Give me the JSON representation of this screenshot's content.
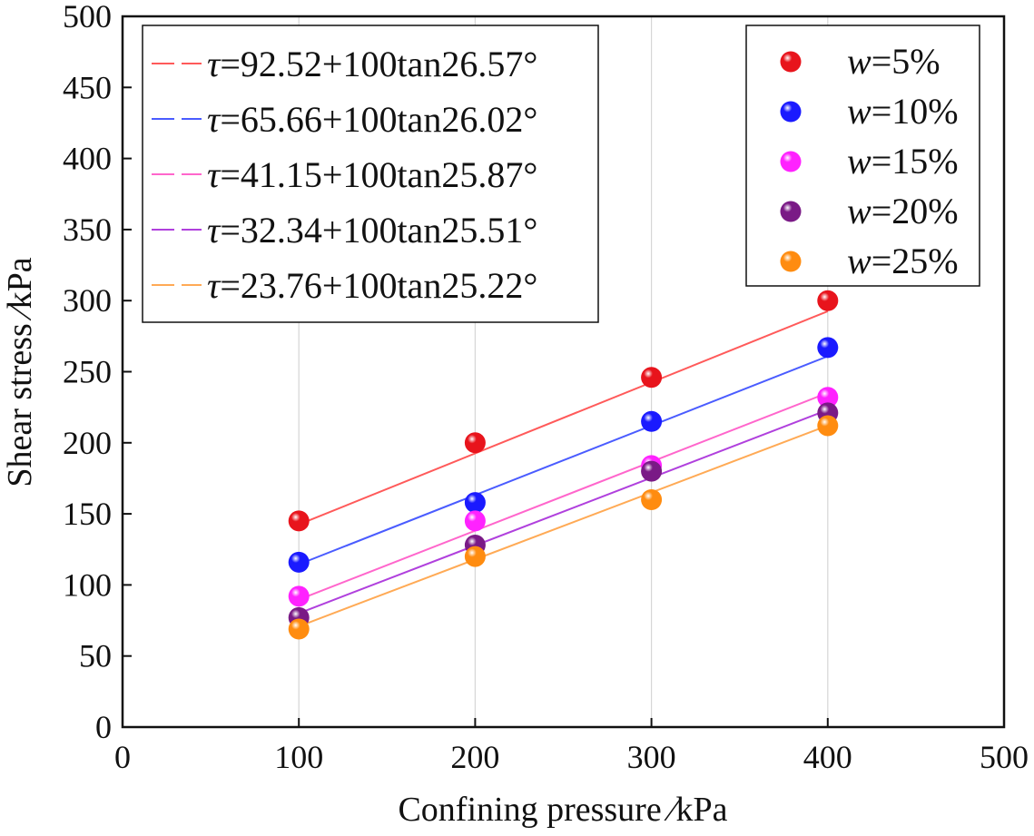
{
  "chart_data": {
    "type": "scatter",
    "title": "",
    "xlabel": "Confining pressure ∕kPa",
    "ylabel": "Shear stress ∕kPa",
    "xlim": [
      0,
      500
    ],
    "ylim": [
      0,
      500
    ],
    "xticks": [
      0,
      100,
      200,
      300,
      400,
      500
    ],
    "yticks": [
      0,
      50,
      100,
      150,
      200,
      250,
      300,
      350,
      400,
      450,
      500
    ],
    "grid": "vertical lines at x = 100, 200, 300, 400",
    "legend_fits_position": "top-left",
    "legend_points_position": "top-right",
    "series": [
      {
        "name": "5%",
        "label_var": "w",
        "label_eq": "=",
        "color": "#e8141c",
        "fit_color": "#ff5a5a",
        "x": [
          100,
          200,
          300,
          400
        ],
        "y": [
          145,
          200,
          246,
          300
        ],
        "fit": {
          "intercept": 92.52,
          "angle_deg": 26.57,
          "slope": 0.5
        },
        "fit_label": {
          "tau": "τ",
          "text": "=92.52+100tan26.57°"
        }
      },
      {
        "name": "10%",
        "label_var": "w",
        "label_eq": "=",
        "color": "#1a1aff",
        "fit_color": "#4a5cff",
        "x": [
          100,
          200,
          300,
          400
        ],
        "y": [
          116,
          158,
          215,
          267
        ],
        "fit": {
          "intercept": 65.66,
          "angle_deg": 26.02,
          "slope": 0.488
        },
        "fit_label": {
          "tau": "τ",
          "text": "=65.66+100tan26.02°"
        }
      },
      {
        "name": "15%",
        "label_var": "w",
        "label_eq": "=",
        "color": "#ff22ff",
        "fit_color": "#ff66cc",
        "x": [
          100,
          200,
          300,
          400
        ],
        "y": [
          92,
          145,
          184,
          232
        ],
        "fit": {
          "intercept": 41.15,
          "angle_deg": 25.87,
          "slope": 0.485
        },
        "fit_label": {
          "tau": "τ",
          "text": "=41.15+100tan25.87°"
        }
      },
      {
        "name": "20%",
        "label_var": "w",
        "label_eq": "=",
        "color": "#7a1a86",
        "fit_color": "#b040dd",
        "x": [
          100,
          200,
          300,
          400
        ],
        "y": [
          77,
          128,
          180,
          221
        ],
        "fit": {
          "intercept": 32.34,
          "angle_deg": 25.51,
          "slope": 0.477
        },
        "fit_label": {
          "tau": "τ",
          "text": "=32.34+100tan25.51°"
        }
      },
      {
        "name": "25%",
        "label_var": "w",
        "label_eq": "=",
        "color": "#ff8c10",
        "fit_color": "#ffaa55",
        "x": [
          100,
          200,
          300,
          400
        ],
        "y": [
          69,
          120,
          160,
          212
        ],
        "fit": {
          "intercept": 23.76,
          "angle_deg": 25.22,
          "slope": 0.471
        },
        "fit_label": {
          "tau": "τ",
          "text": "=23.76+100tan25.22°"
        }
      }
    ]
  }
}
